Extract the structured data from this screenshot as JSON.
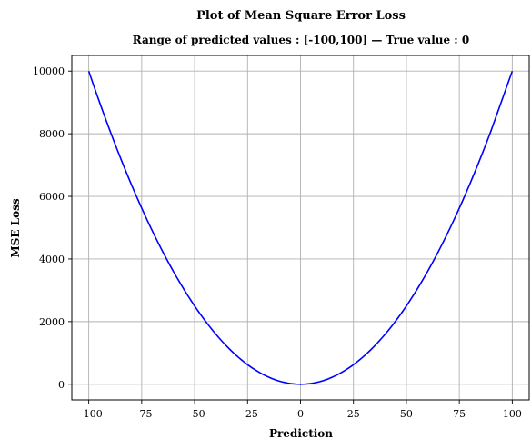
{
  "chart_data": {
    "type": "line",
    "title": "Plot of Mean Square Error Loss",
    "subtitle": "Range of predicted values : [-100,100] — True value : 0",
    "xlabel": "Prediction",
    "ylabel": "MSE Loss",
    "xlim": [
      -108,
      108
    ],
    "ylim": [
      -500,
      10500
    ],
    "x_ticks": [
      -100,
      -75,
      -50,
      -25,
      0,
      25,
      50,
      75,
      100
    ],
    "x_tick_labels": [
      "−100",
      "−75",
      "−50",
      "−25",
      "0",
      "25",
      "50",
      "75",
      "100"
    ],
    "y_ticks": [
      0,
      2000,
      4000,
      6000,
      8000,
      10000
    ],
    "y_tick_labels": [
      "0",
      "2000",
      "4000",
      "6000",
      "8000",
      "10000"
    ],
    "grid": true,
    "series": [
      {
        "color": "#0000ff",
        "x": [
          -100,
          -90,
          -80,
          -70,
          -60,
          -50,
          -40,
          -30,
          -20,
          -10,
          0,
          10,
          20,
          30,
          40,
          50,
          60,
          70,
          80,
          90,
          100
        ],
        "y": [
          10000,
          8100,
          6400,
          4900,
          3600,
          2500,
          1600,
          900,
          400,
          100,
          0,
          100,
          400,
          900,
          1600,
          2500,
          3600,
          4900,
          6400,
          8100,
          10000
        ]
      }
    ]
  }
}
